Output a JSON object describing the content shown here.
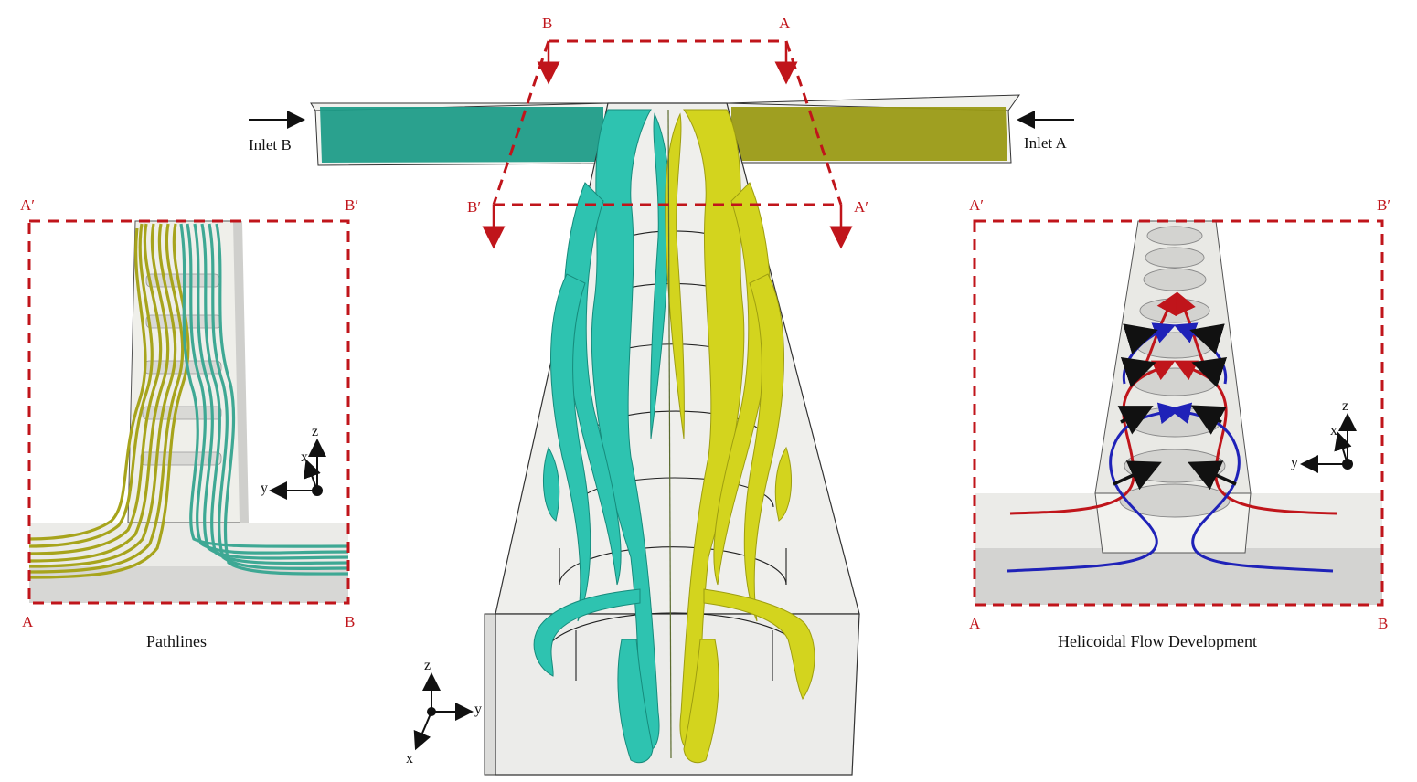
{
  "figure": {
    "center": {
      "inlet_b": "Inlet B",
      "inlet_a": "Inlet A",
      "section_a": "A",
      "section_b": "B",
      "section_a_prime": "A′",
      "section_b_prime": "B′",
      "axes": {
        "z": "z",
        "y": "y",
        "x": "x"
      }
    },
    "left_panel": {
      "corner_a_prime": "A′",
      "corner_b_prime": "B′",
      "corner_a": "A",
      "corner_b": "B",
      "caption": "Pathlines",
      "axes": {
        "z": "z",
        "x": "x",
        "y": "y"
      }
    },
    "right_panel": {
      "corner_a_prime": "A′",
      "corner_b_prime": "B′",
      "corner_a": "A",
      "corner_b": "B",
      "caption": "Helicoidal Flow Development",
      "axes": {
        "z": "z",
        "x": "x",
        "y": "y"
      }
    },
    "colors": {
      "section_line": "#c0151b",
      "stream_a": "#a7a41c",
      "stream_b": "#2aa89a",
      "iso_a": "#d3d41e",
      "iso_b": "#2ec3b0",
      "flow_red": "#c0151b",
      "flow_blue": "#1f22b8"
    }
  }
}
